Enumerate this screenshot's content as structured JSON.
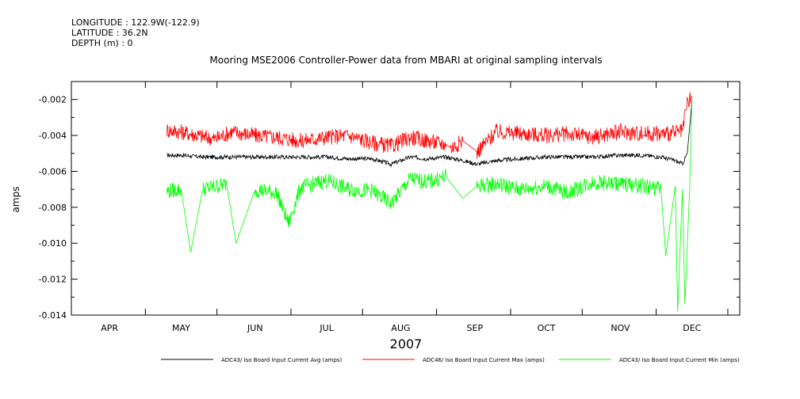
{
  "header": {
    "longitude": "LONGITUDE : 122.9W(-122.9)",
    "latitude": "LATITUDE : 36.2N",
    "depth": "DEPTH (m) : 0"
  },
  "chart_data": {
    "type": "line",
    "title": "Mooring MSE2006 Controller-Power data from MBARI at original sampling intervals",
    "xlabel": "2007",
    "ylabel": "amps",
    "x_unit": "date",
    "xlim": [
      "2007-03-16",
      "2007-12-21"
    ],
    "ylim": [
      -0.014,
      -0.001
    ],
    "x_ticks": [
      {
        "label": "APR",
        "date": "2007-04-01"
      },
      {
        "label": "MAY",
        "date": "2007-05-01"
      },
      {
        "label": "JUN",
        "date": "2007-06-01"
      },
      {
        "label": "JUL",
        "date": "2007-07-01"
      },
      {
        "label": "AUG",
        "date": "2007-08-01"
      },
      {
        "label": "SEP",
        "date": "2007-09-01"
      },
      {
        "label": "OCT",
        "date": "2007-10-01"
      },
      {
        "label": "NOV",
        "date": "2007-11-01"
      },
      {
        "label": "DEC",
        "date": "2007-12-01"
      }
    ],
    "y_ticks": [
      -0.002,
      -0.004,
      -0.006,
      -0.008,
      -0.01,
      -0.012,
      -0.014
    ],
    "y_tick_labels": [
      "-0.002",
      "-0.004",
      "-0.006",
      "-0.008",
      "-0.010",
      "-0.012",
      "-0.014"
    ],
    "grid": false,
    "legend_position": "bottom",
    "series": [
      {
        "name": "ADC43/ Iso Board Input Current Avg (amps)",
        "color": "#000000",
        "x": [
          "2007-04-25",
          "2007-05-01",
          "2007-05-10",
          "2007-05-20",
          "2007-06-01",
          "2007-06-10",
          "2007-06-20",
          "2007-07-01",
          "2007-07-10",
          "2007-07-20",
          "2007-07-28",
          "2007-08-05",
          "2007-08-12",
          "2007-08-20",
          "2007-08-27",
          "2007-09-02",
          "2007-09-10",
          "2007-09-20",
          "2007-10-01",
          "2007-10-10",
          "2007-10-20",
          "2007-11-01",
          "2007-11-10",
          "2007-11-18",
          "2007-11-24",
          "2007-11-27",
          "2007-11-29",
          "2007-12-01"
        ],
        "y": [
          -0.0051,
          -0.0051,
          -0.0052,
          -0.0052,
          -0.0052,
          -0.0052,
          -0.0052,
          -0.0052,
          -0.0053,
          -0.0053,
          -0.0056,
          -0.0052,
          -0.0053,
          -0.0052,
          -0.0054,
          -0.0056,
          -0.0054,
          -0.0053,
          -0.0052,
          -0.0052,
          -0.0052,
          -0.0051,
          -0.0051,
          -0.0052,
          -0.0054,
          -0.0056,
          -0.005,
          -0.0021
        ]
      },
      {
        "name": "ADC46/ Iso Board Input Current Max (amps)",
        "color": "#ff0000",
        "x": [
          "2007-04-25",
          "2007-05-01",
          "2007-05-08",
          "2007-05-15",
          "2007-05-22",
          "2007-06-01",
          "2007-06-10",
          "2007-06-20",
          "2007-07-01",
          "2007-07-10",
          "2007-07-20",
          "2007-07-28",
          "2007-08-05",
          "2007-08-12",
          "2007-08-20",
          "2007-08-22",
          "2007-08-27",
          "2007-09-02",
          "2007-09-10",
          "2007-09-20",
          "2007-10-01",
          "2007-10-10",
          "2007-10-20",
          "2007-11-01",
          "2007-11-10",
          "2007-11-20",
          "2007-11-27",
          "2007-11-29",
          "2007-12-01"
        ],
        "y": [
          -0.0037,
          -0.0038,
          -0.004,
          -0.0042,
          -0.0038,
          -0.004,
          -0.0041,
          -0.0043,
          -0.0041,
          -0.004,
          -0.0044,
          -0.0046,
          -0.0041,
          -0.0043,
          -0.0045,
          -0.0047,
          -0.0043,
          -0.0049,
          -0.0038,
          -0.0039,
          -0.004,
          -0.0039,
          -0.0041,
          -0.0038,
          -0.0039,
          -0.0039,
          -0.0038,
          -0.0022,
          -0.0019
        ]
      },
      {
        "name": "ADC43/ Iso Board Input Current Min (amps)",
        "color": "#00ff00",
        "x": [
          "2007-04-25",
          "2007-05-01",
          "2007-05-05",
          "2007-05-10",
          "2007-05-20",
          "2007-05-24",
          "2007-06-01",
          "2007-06-10",
          "2007-06-15",
          "2007-06-20",
          "2007-07-01",
          "2007-07-10",
          "2007-07-20",
          "2007-07-28",
          "2007-08-05",
          "2007-08-12",
          "2007-08-20",
          "2007-08-27",
          "2007-09-02",
          "2007-09-10",
          "2007-09-20",
          "2007-10-01",
          "2007-10-10",
          "2007-10-20",
          "2007-11-01",
          "2007-11-10",
          "2007-11-18",
          "2007-11-20",
          "2007-11-24",
          "2007-11-25",
          "2007-11-27",
          "2007-11-28",
          "2007-11-30",
          "2007-12-01"
        ],
        "y": [
          -0.0071,
          -0.007,
          -0.0105,
          -0.007,
          -0.0067,
          -0.01,
          -0.007,
          -0.0072,
          -0.0089,
          -0.0069,
          -0.0065,
          -0.007,
          -0.0071,
          -0.0078,
          -0.0064,
          -0.0066,
          -0.0063,
          -0.0075,
          -0.0068,
          -0.0067,
          -0.007,
          -0.0068,
          -0.0072,
          -0.0066,
          -0.0067,
          -0.0068,
          -0.007,
          -0.0107,
          -0.0068,
          -0.0138,
          -0.007,
          -0.0134,
          -0.007,
          -0.002
        ]
      }
    ]
  }
}
